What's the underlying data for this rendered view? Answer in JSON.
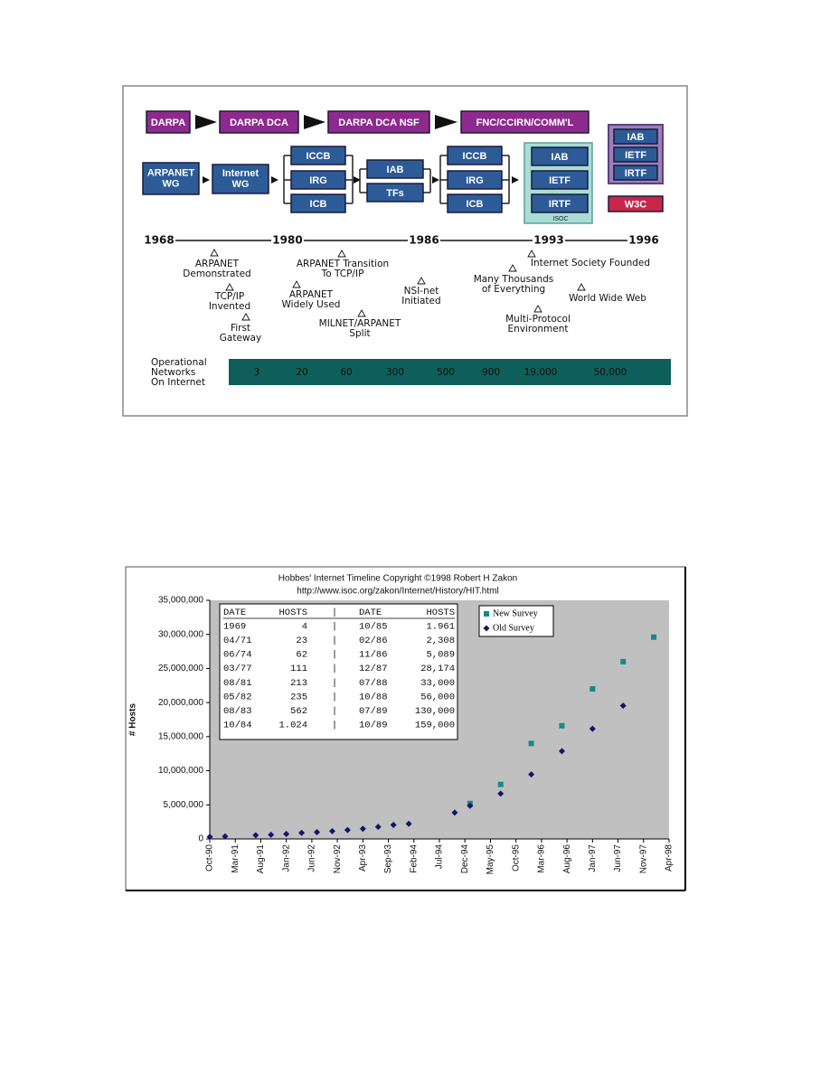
{
  "diagram": {
    "boxes": [
      {
        "label": "DARPA"
      },
      {
        "label": "DARPA DCA"
      },
      {
        "label": "DARPA DCA NSF"
      },
      {
        "label": "FNC/CCIRN/COMM'L"
      },
      {
        "label": [
          "ARPANET",
          "WG"
        ]
      },
      {
        "label": [
          "Internet",
          "WG"
        ]
      },
      {
        "label": "ICCB"
      },
      {
        "label": "IRG"
      },
      {
        "label": "ICB"
      },
      {
        "label": "IAB"
      },
      {
        "label": "TFs"
      },
      {
        "label": "ICCB"
      },
      {
        "label": "IRG"
      },
      {
        "label": "ICB"
      },
      {
        "label": "IAB"
      },
      {
        "label": "IETF"
      },
      {
        "label": "IRTF"
      },
      {
        "label": "IAB"
      },
      {
        "label": "IETF"
      },
      {
        "label": "IRTF"
      },
      {
        "label": "W3C"
      }
    ],
    "group_label": "ISOC",
    "years": [
      "1968",
      "1980",
      "1986",
      "1993",
      "1996"
    ],
    "annotations": [
      {
        "lines": [
          "ARPANET",
          "Demonstrated"
        ]
      },
      {
        "lines": [
          "TCP/IP",
          "Invented"
        ]
      },
      {
        "lines": [
          "First",
          "Gateway"
        ]
      },
      {
        "lines": [
          "ARPANET Transition",
          "To TCP/IP"
        ]
      },
      {
        "lines": [
          "ARPANET",
          "Widely Used"
        ]
      },
      {
        "lines": [
          "MILNET/ARPANET",
          "Split"
        ]
      },
      {
        "lines": [
          "NSI-net",
          "Initiated"
        ]
      },
      {
        "lines": [
          "Many Thousands",
          "of Everything"
        ]
      },
      {
        "lines": [
          "Internet Society Founded"
        ]
      },
      {
        "lines": [
          "World Wide Web"
        ]
      },
      {
        "lines": [
          "Multi-Protocol",
          "Environment"
        ]
      }
    ],
    "networks": {
      "label": [
        "Operational",
        "Networks",
        "On Internet"
      ],
      "values": [
        "3",
        "20",
        "60",
        "300",
        "500",
        "900",
        "19,000",
        "50,000"
      ]
    }
  },
  "chart_data": {
    "type": "scatter",
    "title": "Hobbes' Internet Timeline Copyright ©1998 Robert H Zakon",
    "subtitle": "http://www.isoc.org/zakon/Internet/History/HIT.html",
    "ylabel": "# Hosts",
    "xlim": [
      "1990-10",
      "1998-04"
    ],
    "xticks": [
      {
        "value": "1990-10",
        "label": "Oct-90"
      },
      {
        "value": "1991-03",
        "label": "Mar-91"
      },
      {
        "value": "1991-08",
        "label": "Aug-91"
      },
      {
        "value": "1992-01",
        "label": "Jan-92"
      },
      {
        "value": "1992-06",
        "label": "Jun-92"
      },
      {
        "value": "1992-11",
        "label": "Nov-92"
      },
      {
        "value": "1993-04",
        "label": "Apr-93"
      },
      {
        "value": "1993-09",
        "label": "Sep-93"
      },
      {
        "value": "1994-02",
        "label": "Feb-94"
      },
      {
        "value": "1994-07",
        "label": "Jul-94"
      },
      {
        "value": "1994-12",
        "label": "Dec-94"
      },
      {
        "value": "1995-05",
        "label": "May-95"
      },
      {
        "value": "1995-10",
        "label": "Oct-95"
      },
      {
        "value": "1996-03",
        "label": "Mar-96"
      },
      {
        "value": "1996-08",
        "label": "Aug-96"
      },
      {
        "value": "1997-01",
        "label": "Jan-97"
      },
      {
        "value": "1997-06",
        "label": "Jun-97"
      },
      {
        "value": "1997-11",
        "label": "Nov-97"
      },
      {
        "value": "1998-04",
        "label": "Apr-98"
      }
    ],
    "ylim": [
      0,
      35000000
    ],
    "yticks": [
      0,
      {
        "value": 5000000,
        "label": "5,000,000"
      },
      {
        "value": 10000000,
        "label": "10,000,000"
      },
      {
        "value": 15000000,
        "label": "15,000,000"
      },
      {
        "value": 20000000,
        "label": "20,000,000"
      },
      {
        "value": 25000000,
        "label": "25,000,000"
      },
      {
        "value": 30000000,
        "label": "30,000,000"
      },
      {
        "value": 35000000,
        "label": "35,000,000"
      }
    ],
    "grid": false,
    "legend": "top-right",
    "series": [
      {
        "name": "New Survey",
        "color": "#168a8a",
        "marker": "square",
        "x": [
          "1995-01",
          "1995-07",
          "1996-01",
          "1996-07",
          "1997-01",
          "1997-07",
          "1998-01"
        ],
        "values": [
          5200000,
          8000000,
          14000000,
          16600000,
          22000000,
          26000000,
          29600000
        ]
      },
      {
        "name": "Old Survey",
        "color": "#14146e",
        "marker": "diamond",
        "x": [
          "1990-10",
          "1991-01",
          "1991-07",
          "1991-10",
          "1992-01",
          "1992-04",
          "1992-07",
          "1992-10",
          "1993-01",
          "1993-04",
          "1993-07",
          "1993-10",
          "1994-01",
          "1994-10",
          "1995-01",
          "1995-07",
          "1996-01",
          "1996-07",
          "1997-01",
          "1997-07"
        ],
        "values": [
          310000,
          380000,
          540000,
          620000,
          730000,
          890000,
          990000,
          1140000,
          1310000,
          1490000,
          1780000,
          2060000,
          2220000,
          3860000,
          4850000,
          6640000,
          9470000,
          12880000,
          16150000,
          19540000
        ]
      }
    ],
    "table": {
      "header": [
        "DATE",
        "HOSTS",
        "DATE",
        "HOSTS"
      ],
      "rows": [
        [
          "1969",
          "4",
          "10/85",
          "1.961"
        ],
        [
          "04/71",
          "23",
          "02/86",
          "2,308"
        ],
        [
          "06/74",
          "62",
          "11/86",
          "5,089"
        ],
        [
          "03/77",
          "111",
          "12/87",
          "28,174"
        ],
        [
          "08/81",
          "213",
          "07/88",
          "33,000"
        ],
        [
          "05/82",
          "235",
          "10/88",
          "56,000"
        ],
        [
          "08/83",
          "562",
          "07/89",
          "130,000"
        ],
        [
          "10/84",
          "1.024",
          "10/89",
          "159,000"
        ]
      ]
    }
  }
}
